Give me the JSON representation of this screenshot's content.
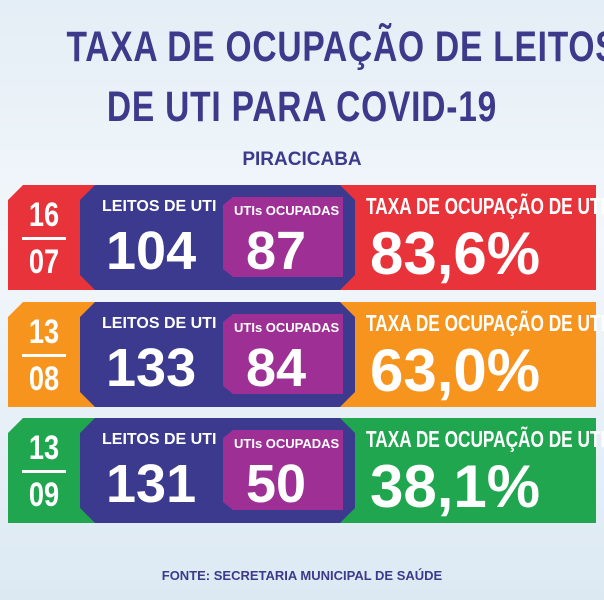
{
  "title_line1": "TAXA DE OCUPAÇÃO DE LEITOS",
  "title_line2": "DE UTI PARA COVID-19",
  "city": "PIRACICABA",
  "labels": {
    "beds": "LEITOS DE UTI",
    "occupied": "UTIs OCUPADAS",
    "rate": "TAXA DE OCUPAÇÃO DE UTI"
  },
  "rows": [
    {
      "day": "16",
      "month": "07",
      "beds": "104",
      "occupied": "87",
      "rate": "83,6%",
      "color": "#e8333b"
    },
    {
      "day": "13",
      "month": "08",
      "beds": "133",
      "occupied": "84",
      "rate": "63,0%",
      "color": "#f7941e"
    },
    {
      "day": "13",
      "month": "09",
      "beds": "131",
      "occupied": "50",
      "rate": "38,1%",
      "color": "#1fa64f"
    }
  ],
  "source": "FONTE: SECRETARIA MUNICIPAL DE SAÚDE"
}
